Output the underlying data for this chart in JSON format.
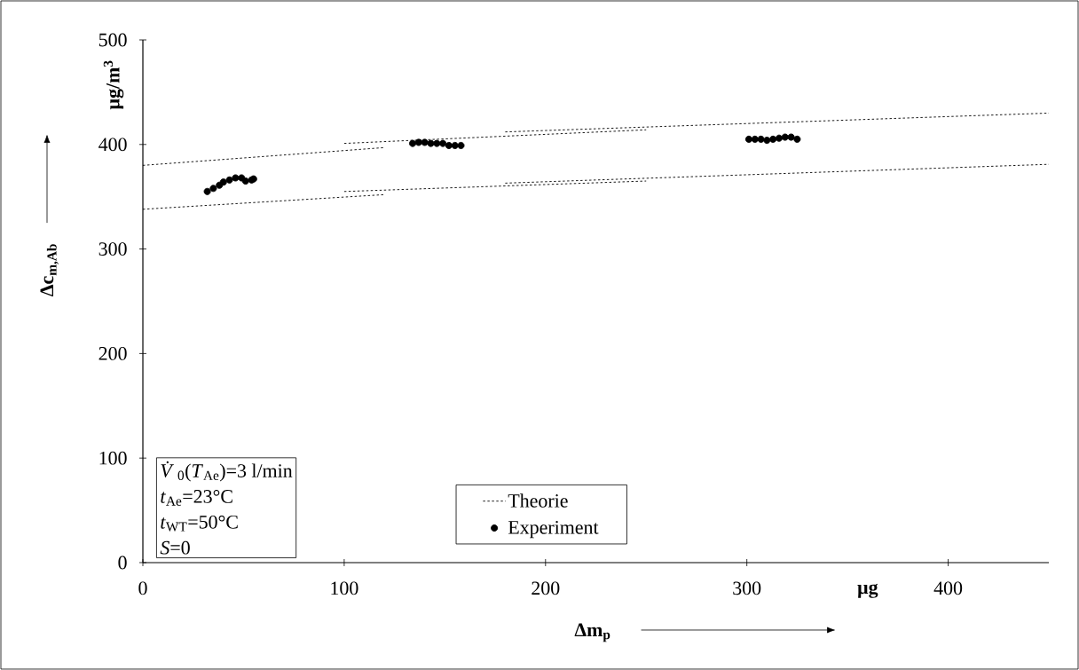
{
  "chart_data": {
    "type": "line",
    "xlabel": "Δm$_{p}$",
    "ylabel": "Δc$_{m,Ab}$",
    "xlim": [
      0,
      450
    ],
    "ylim": [
      0,
      500
    ],
    "xticks": [
      0,
      100,
      200,
      300,
      400
    ],
    "yticks": [
      0,
      100,
      200,
      300,
      400,
      500
    ],
    "legend": "bottom",
    "annotations": [
      "µg/m$^{3}$",
      "µg",
      "*V̇*$_{0}$(*T*$_{Ae}$)=3 l/min",
      "*t*$_{Ae}$=23°C",
      "*t*$_{WT}$=50°C",
      "*S*=0"
    ],
    "series": [
      {
        "name": "Theorie",
        "color": "#000000",
        "line_style": "dotted",
        "marker": "none",
        "x": [
          0,
          120
        ],
        "values": [
          380,
          397
        ]
      },
      {
        "color": "#000000",
        "line_style": "dotted",
        "marker": "none",
        "x": [
          100,
          250
        ],
        "values": [
          401,
          414
        ]
      },
      {
        "color": "#000000",
        "line_style": "dotted",
        "marker": "none",
        "x": [
          180,
          450
        ],
        "values": [
          412,
          430
        ]
      },
      {
        "color": "#000000",
        "line_style": "dotted",
        "marker": "none",
        "x": [
          0,
          120
        ],
        "values": [
          338,
          352
        ]
      },
      {
        "color": "#000000",
        "line_style": "dotted",
        "marker": "none",
        "x": [
          100,
          250
        ],
        "values": [
          355,
          365
        ]
      },
      {
        "color": "#000000",
        "line_style": "dotted",
        "marker": "none",
        "x": [
          180,
          450
        ],
        "values": [
          363,
          381
        ]
      },
      {
        "name": "Experiment",
        "type": "scatter",
        "color": "#000000",
        "marker": "circle",
        "x": [
          32,
          35,
          38,
          40,
          43,
          46,
          49,
          51,
          54,
          55,
          134,
          137,
          140,
          143,
          146,
          149,
          152,
          155,
          158,
          301,
          304,
          307,
          310,
          313,
          316,
          319,
          322,
          325
        ],
        "values": [
          355,
          358,
          361,
          364,
          366,
          368,
          368,
          365,
          366,
          367,
          401,
          402,
          402,
          401,
          401,
          401,
          399,
          399,
          399,
          405,
          405,
          405,
          404,
          405,
          406,
          407,
          407,
          405
        ]
      }
    ]
  }
}
